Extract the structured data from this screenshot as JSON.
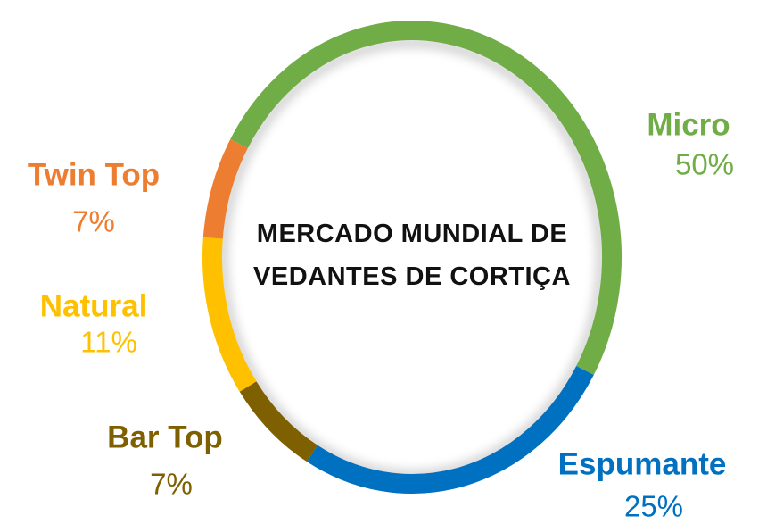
{
  "chart_data": {
    "type": "donut",
    "title": "MERCADO MUNDIAL DE VEDANTES DE CORTIÇA",
    "categories": [
      "Micro",
      "Espumante",
      "Bar Top",
      "Natural",
      "Twin Top"
    ],
    "values": [
      50,
      25,
      7,
      11,
      7
    ],
    "value_labels": [
      "50%",
      "25%",
      "7%",
      "11%",
      "7%"
    ],
    "colors": [
      "#70ad47",
      "#0070c0",
      "#7f6000",
      "#ffc000",
      "#ed7d31"
    ]
  }
}
